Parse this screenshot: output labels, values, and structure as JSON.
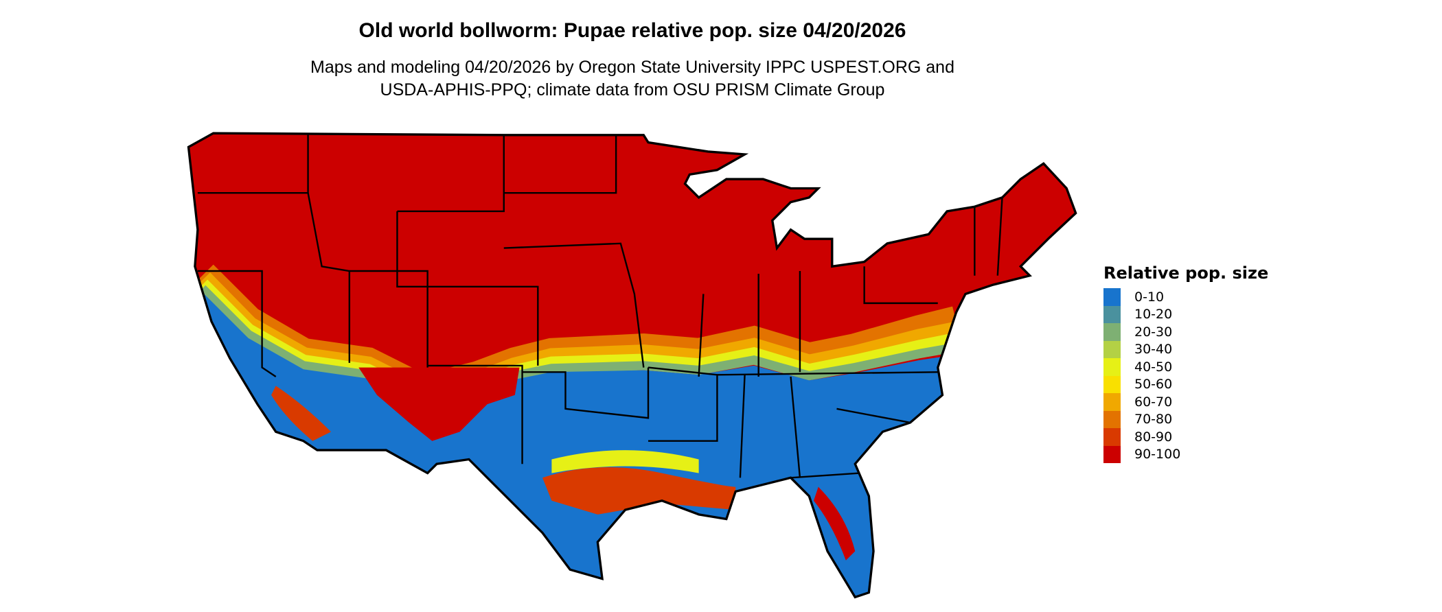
{
  "title": "Old world bollworm: Pupae relative pop. size 04/20/2026",
  "subtitle_line1": "Maps and modeling 04/20/2026 by Oregon State University IPPC USPEST.ORG and",
  "subtitle_line2": "USDA-APHIS-PPQ; climate data from OSU PRISM Climate Group",
  "legend": {
    "title": "Relative pop. size",
    "items": [
      {
        "label": "0-10",
        "color": "#1874CD"
      },
      {
        "label": "10-20",
        "color": "#4A919E"
      },
      {
        "label": "20-30",
        "color": "#7EB073"
      },
      {
        "label": "30-40",
        "color": "#B3D145"
      },
      {
        "label": "40-50",
        "color": "#E6F016"
      },
      {
        "label": "50-60",
        "color": "#F9E000"
      },
      {
        "label": "60-70",
        "color": "#F0A800"
      },
      {
        "label": "70-80",
        "color": "#E37300"
      },
      {
        "label": "80-90",
        "color": "#D93A00"
      },
      {
        "label": "90-100",
        "color": "#CC0000"
      }
    ]
  },
  "chart_data": {
    "type": "heatmap",
    "region": "contiguous United States",
    "legend_placement": "right",
    "bins": [
      "0-10",
      "10-20",
      "20-30",
      "30-40",
      "40-50",
      "50-60",
      "60-70",
      "70-80",
      "80-90",
      "90-100"
    ],
    "dominant_north": "90-100",
    "dominant_south": "0-10"
  }
}
